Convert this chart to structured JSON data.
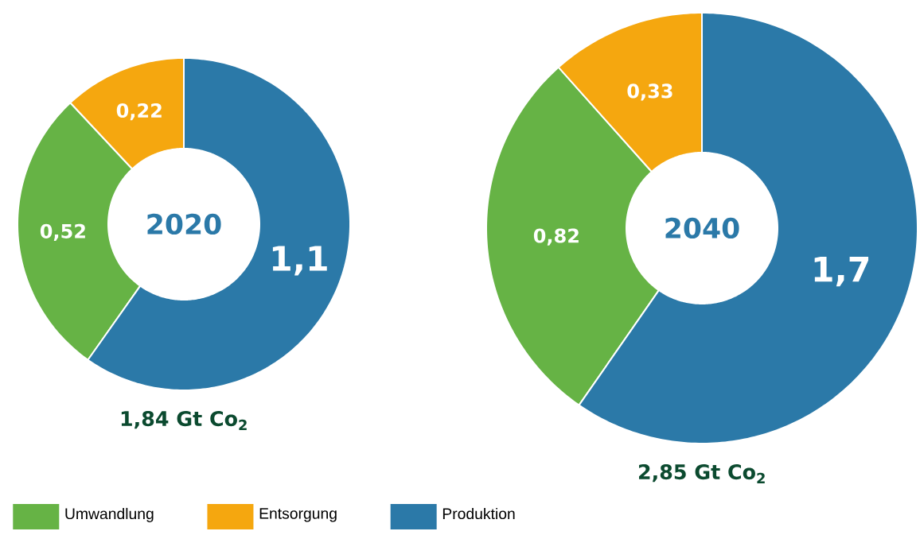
{
  "chart_data": [
    {
      "type": "donut",
      "title": "2020",
      "subtitle": "1,84 Gt Co$_{2}$",
      "categories": [
        "Umwandlung",
        "Entsorgung",
        "Produktion"
      ],
      "values": [
        0.52,
        0.22,
        1.1
      ],
      "value_labels": [
        "0,52",
        "0,22",
        "1,1"
      ],
      "colors": [
        "#66b345",
        "#f5a70f",
        "#2b79a8"
      ],
      "legend": "bottom"
    },
    {
      "type": "donut",
      "title": "2040",
      "subtitle": "2,85 Gt Co$_{2}$",
      "categories": [
        null,
        null,
        null
      ],
      "values": [
        0.82,
        0.33,
        1.7
      ],
      "value_labels": [
        "0,82",
        "0,33",
        "1,7"
      ],
      "colors": [
        "#66b345",
        "#f5a70f",
        "#2b79a8"
      ]
    }
  ]
}
